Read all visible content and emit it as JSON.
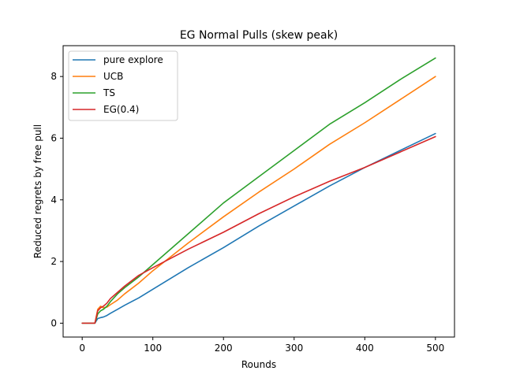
{
  "chart_data": {
    "type": "line",
    "title": "EG Normal Pulls (skew peak)",
    "xlabel": "Rounds",
    "ylabel": "Reduced regrets by free pull",
    "xlim": [
      -27,
      527
    ],
    "ylim": [
      -0.45,
      9.0
    ],
    "xticks": [
      0,
      100,
      200,
      300,
      400,
      500
    ],
    "yticks": [
      0,
      2,
      4,
      6,
      8
    ],
    "grid": false,
    "legend_position": "top-left",
    "series": [
      {
        "name": "pure explore",
        "color": "#1f77b4",
        "x": [
          0,
          10,
          18,
          22,
          26,
          30,
          35,
          40,
          50,
          60,
          80,
          100,
          150,
          200,
          250,
          300,
          350,
          400,
          450,
          500
        ],
        "y": [
          0,
          0,
          0,
          0.15,
          0.18,
          0.2,
          0.25,
          0.32,
          0.45,
          0.58,
          0.82,
          1.1,
          1.8,
          2.45,
          3.15,
          3.8,
          4.45,
          5.05,
          5.6,
          6.15
        ]
      },
      {
        "name": "UCB",
        "color": "#ff7f0e",
        "x": [
          0,
          10,
          18,
          22,
          26,
          30,
          35,
          40,
          50,
          60,
          80,
          100,
          150,
          200,
          250,
          300,
          350,
          400,
          450,
          500
        ],
        "y": [
          0,
          0,
          0,
          0.45,
          0.55,
          0.5,
          0.52,
          0.6,
          0.75,
          0.95,
          1.3,
          1.7,
          2.6,
          3.45,
          4.25,
          5.0,
          5.8,
          6.5,
          7.25,
          8.0
        ]
      },
      {
        "name": "TS",
        "color": "#2ca02c",
        "x": [
          0,
          10,
          18,
          22,
          26,
          30,
          35,
          40,
          50,
          60,
          80,
          100,
          150,
          200,
          250,
          300,
          350,
          400,
          450,
          500
        ],
        "y": [
          0,
          0,
          0,
          0.3,
          0.4,
          0.45,
          0.55,
          0.7,
          0.95,
          1.15,
          1.5,
          1.9,
          2.9,
          3.9,
          4.75,
          5.6,
          6.45,
          7.15,
          7.9,
          8.6
        ]
      },
      {
        "name": "EG(0.4)",
        "color": "#d62728",
        "x": [
          0,
          10,
          18,
          22,
          26,
          30,
          35,
          40,
          50,
          60,
          80,
          100,
          150,
          200,
          250,
          300,
          350,
          400,
          450,
          500
        ],
        "y": [
          0,
          0,
          0,
          0.4,
          0.5,
          0.55,
          0.65,
          0.8,
          1.0,
          1.2,
          1.55,
          1.8,
          2.4,
          2.95,
          3.55,
          4.1,
          4.6,
          5.05,
          5.55,
          6.05
        ]
      }
    ]
  }
}
